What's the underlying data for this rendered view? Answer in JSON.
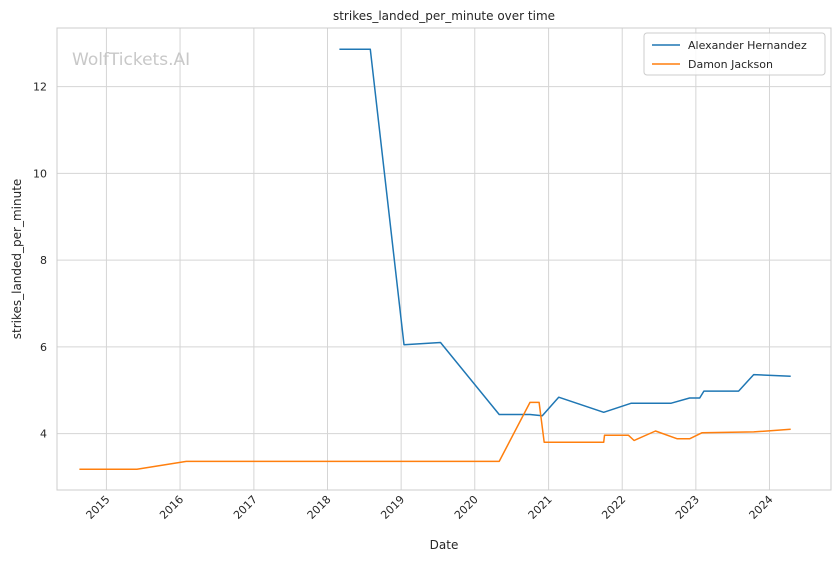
{
  "chart_data": {
    "type": "line",
    "title": "strikes_landed_per_minute over time",
    "xlabel": "Date",
    "ylabel": "strikes_landed_per_minute",
    "watermark": "WolfTickets.AI",
    "x_type": "date",
    "xlim": [
      "2014-05-01",
      "2024-11-01"
    ],
    "ylim": [
      2.7,
      13.35
    ],
    "x_ticks": [
      "2015-01-01",
      "2016-01-01",
      "2017-01-01",
      "2018-01-01",
      "2019-01-01",
      "2020-01-01",
      "2021-01-01",
      "2022-01-01",
      "2023-01-01",
      "2024-01-01"
    ],
    "x_tick_labels": [
      "2015",
      "2016",
      "2017",
      "2018",
      "2019",
      "2020",
      "2021",
      "2022",
      "2023",
      "2024"
    ],
    "y_ticks": [
      4,
      6,
      8,
      10,
      12
    ],
    "grid": true,
    "legend_position": "top-right",
    "series": [
      {
        "name": "Alexander Hernandez",
        "color": "#1f77b4",
        "points": [
          [
            "2018-03-01",
            12.86
          ],
          [
            "2018-08-01",
            12.86
          ],
          [
            "2019-01-15",
            6.05
          ],
          [
            "2019-07-15",
            6.1
          ],
          [
            "2020-05-01",
            4.44
          ],
          [
            "2020-10-01",
            4.44
          ],
          [
            "2020-12-01",
            4.41
          ],
          [
            "2021-02-20",
            4.84
          ],
          [
            "2021-10-01",
            4.49
          ],
          [
            "2022-02-15",
            4.7
          ],
          [
            "2022-09-01",
            4.7
          ],
          [
            "2022-12-01",
            4.82
          ],
          [
            "2023-01-20",
            4.82
          ],
          [
            "2023-02-10",
            4.98
          ],
          [
            "2023-08-01",
            4.98
          ],
          [
            "2023-10-15",
            5.36
          ],
          [
            "2024-04-15",
            5.32
          ]
        ]
      },
      {
        "name": "Damon Jackson",
        "color": "#ff7f0e",
        "points": [
          [
            "2014-08-20",
            3.18
          ],
          [
            "2015-06-01",
            3.18
          ],
          [
            "2016-02-01",
            3.36
          ],
          [
            "2020-05-01",
            3.36
          ],
          [
            "2020-10-01",
            4.72
          ],
          [
            "2020-11-15",
            4.72
          ],
          [
            "2020-12-10",
            3.8
          ],
          [
            "2021-10-01",
            3.8
          ],
          [
            "2021-10-05",
            3.96
          ],
          [
            "2022-02-01",
            3.96
          ],
          [
            "2022-03-01",
            3.84
          ],
          [
            "2022-06-15",
            4.06
          ],
          [
            "2022-10-01",
            3.88
          ],
          [
            "2022-12-01",
            3.88
          ],
          [
            "2023-02-01",
            4.02
          ],
          [
            "2023-10-15",
            4.04
          ],
          [
            "2024-04-15",
            4.1
          ]
        ]
      }
    ]
  }
}
